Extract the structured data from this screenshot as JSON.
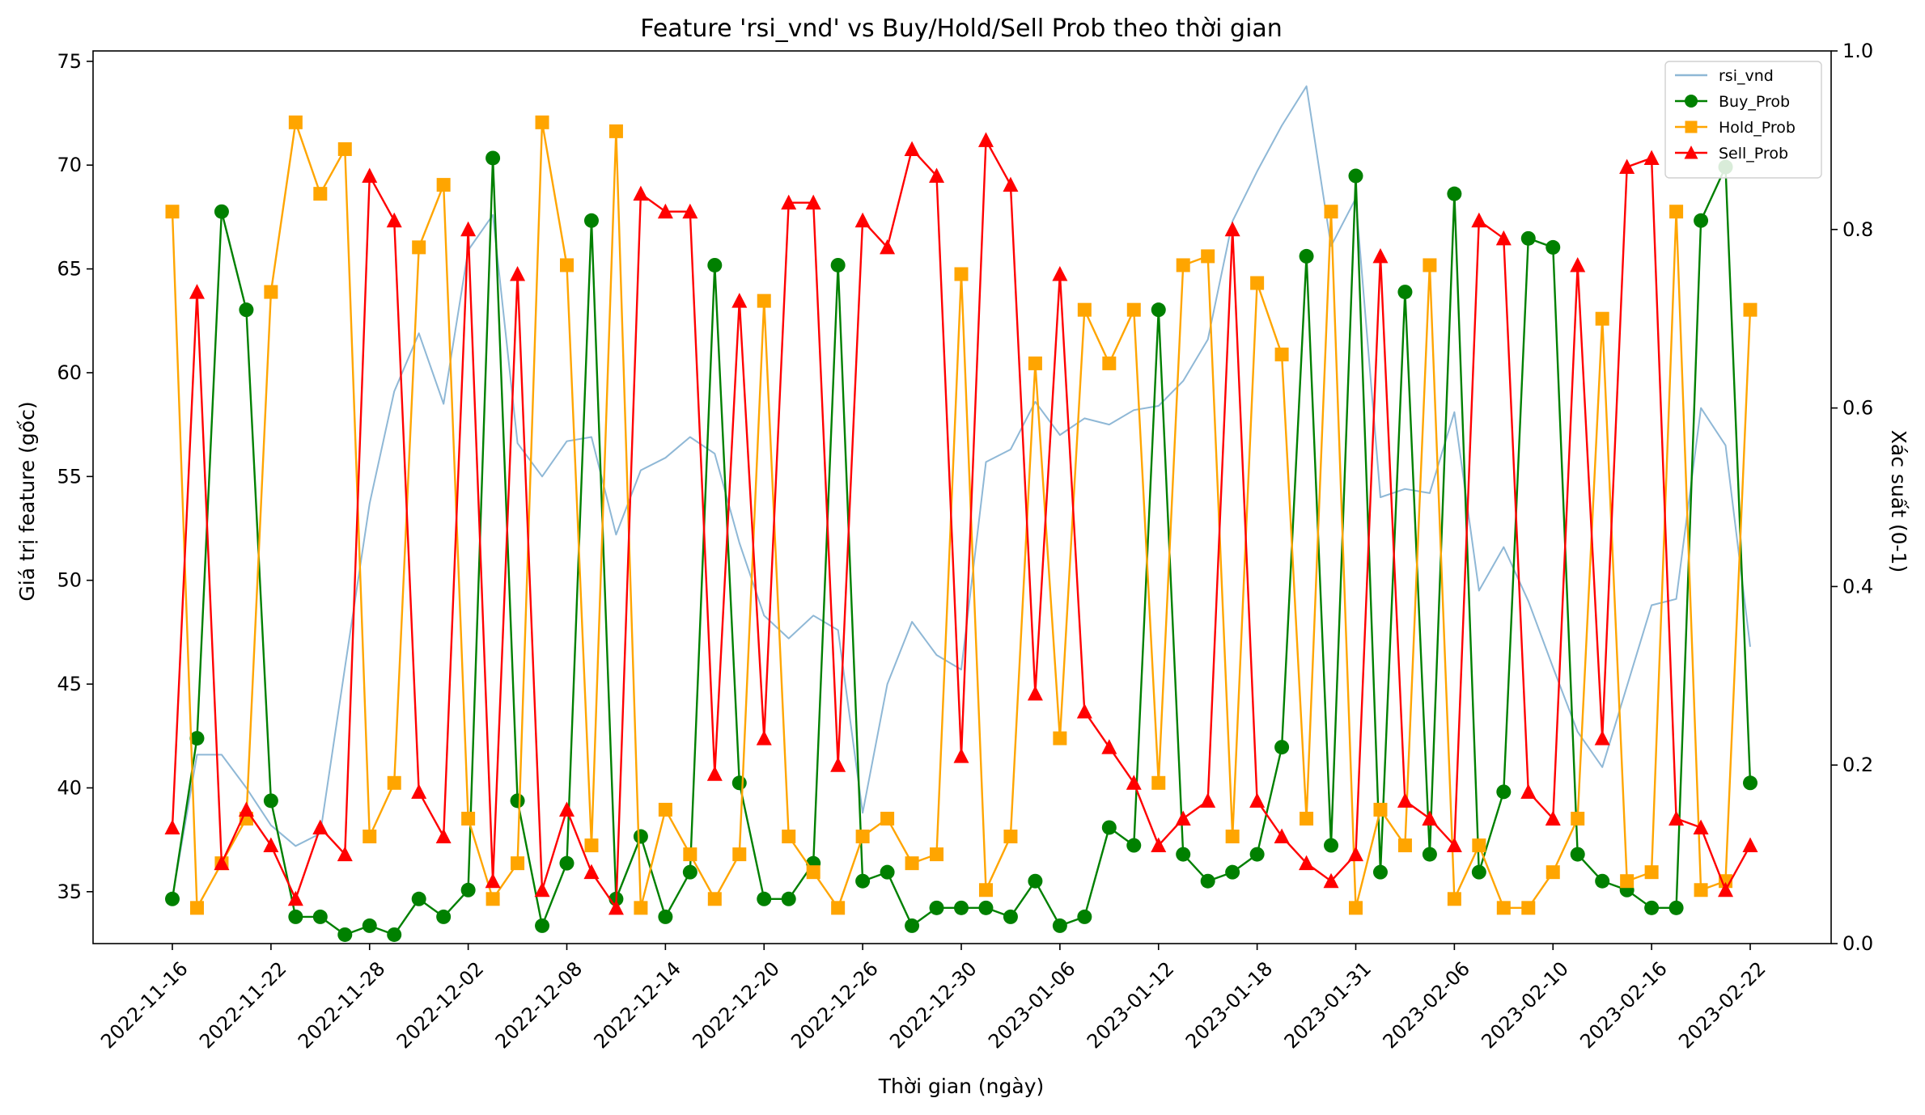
{
  "chart_data": {
    "type": "line",
    "title": "Feature 'rsi_vnd' vs Buy/Hold/Sell Prob theo thời gian",
    "xlabel": "Thời gian (ngày)",
    "ylabel_left": "Giá trị feature (gốc)",
    "ylabel_right": "Xác suất (0-1)",
    "ylim_left": [
      32.5,
      75.5
    ],
    "ylim_right": [
      0,
      1
    ],
    "yticks_left": [
      35,
      40,
      45,
      50,
      55,
      60,
      65,
      70,
      75
    ],
    "yticks_right": [
      "0.0",
      "0.2",
      "0.4",
      "0.6",
      "0.8",
      "1.0"
    ],
    "x_tick_labels": [
      "2022-11-16",
      "2022-11-22",
      "2022-11-28",
      "2022-12-02",
      "2022-12-08",
      "2022-12-14",
      "2022-12-20",
      "2022-12-26",
      "2022-12-30",
      "2023-01-06",
      "2023-01-12",
      "2023-01-18",
      "2023-01-31",
      "2023-02-06",
      "2023-02-10",
      "2023-02-16",
      "2023-02-22"
    ],
    "legend_position": "top-right",
    "grid": false,
    "series": [
      {
        "name": "rsi_vnd",
        "axis": "left",
        "color": "#8fb8d6",
        "marker": "none",
        "values": [
          34.7,
          41.6,
          41.6,
          40,
          38.2,
          37.2,
          37.8,
          45.8,
          53.7,
          59.1,
          61.9,
          58.5,
          65.9,
          67.6,
          56.6,
          55,
          56.7,
          56.9,
          52.2,
          55.3,
          55.9,
          56.9,
          56.1,
          51.8,
          48.3,
          47.2,
          48.3,
          47.6,
          38.8,
          45,
          48,
          46.4,
          45.7,
          55.7,
          56.3,
          58.6,
          57,
          57.8,
          57.5,
          58.2,
          58.4,
          59.6,
          61.6,
          67.3,
          69.7,
          71.9,
          73.8,
          66.1,
          68.4,
          54,
          54.4,
          54.2,
          58.1,
          49.5,
          51.6,
          49,
          45.8,
          42.7,
          41,
          44.9,
          48.8,
          49.1,
          58.3,
          56.5,
          46.8
        ]
      },
      {
        "name": "Buy_Prob",
        "axis": "right",
        "color": "#008000",
        "marker": "circle",
        "values": [
          0.05,
          0.23,
          0.82,
          0.71,
          0.16,
          0.03,
          0.03,
          0.01,
          0.02,
          0.01,
          0.05,
          0.03,
          0.06,
          0.88,
          0.16,
          0.02,
          0.09,
          0.81,
          0.05,
          0.12,
          0.03,
          0.08,
          0.76,
          0.18,
          0.05,
          0.05,
          0.09,
          0.76,
          0.07,
          0.08,
          0.02,
          0.04,
          0.04,
          0.04,
          0.03,
          0.07,
          0.02,
          0.03,
          0.13,
          0.11,
          0.71,
          0.1,
          0.07,
          0.08,
          0.1,
          0.22,
          0.77,
          0.11,
          0.86,
          0.08,
          0.73,
          0.1,
          0.84,
          0.08,
          0.17,
          0.79,
          0.78,
          0.1,
          0.07,
          0.06,
          0.04,
          0.04,
          0.81,
          0.87,
          0.18
        ]
      },
      {
        "name": "Hold_Prob",
        "axis": "right",
        "color": "#ffa500",
        "marker": "square",
        "values": [
          0.82,
          0.04,
          0.09,
          0.14,
          0.73,
          0.92,
          0.84,
          0.89,
          0.12,
          0.18,
          0.78,
          0.85,
          0.14,
          0.05,
          0.09,
          0.92,
          0.76,
          0.11,
          0.91,
          0.04,
          0.15,
          0.1,
          0.05,
          0.1,
          0.72,
          0.12,
          0.08,
          0.04,
          0.12,
          0.14,
          0.09,
          0.1,
          0.75,
          0.06,
          0.12,
          0.65,
          0.23,
          0.71,
          0.65,
          0.71,
          0.18,
          0.76,
          0.77,
          0.12,
          0.74,
          0.66,
          0.14,
          0.82,
          0.04,
          0.15,
          0.11,
          0.76,
          0.05,
          0.11,
          0.04,
          0.04,
          0.08,
          0.14,
          0.7,
          0.07,
          0.08,
          0.82,
          0.06,
          0.07,
          0.71
        ]
      },
      {
        "name": "Sell_Prob",
        "axis": "right",
        "color": "#ff0000",
        "marker": "triangle",
        "values": [
          0.13,
          0.73,
          0.09,
          0.15,
          0.11,
          0.05,
          0.13,
          0.1,
          0.86,
          0.81,
          0.17,
          0.12,
          0.8,
          0.07,
          0.75,
          0.06,
          0.15,
          0.08,
          0.04,
          0.84,
          0.82,
          0.82,
          0.19,
          0.72,
          0.23,
          0.83,
          0.83,
          0.2,
          0.81,
          0.78,
          0.89,
          0.86,
          0.21,
          0.9,
          0.85,
          0.28,
          0.75,
          0.26,
          0.22,
          0.18,
          0.11,
          0.14,
          0.16,
          0.8,
          0.16,
          0.12,
          0.09,
          0.07,
          0.1,
          0.77,
          0.16,
          0.14,
          0.11,
          0.81,
          0.79,
          0.17,
          0.14,
          0.76,
          0.23,
          0.87,
          0.88,
          0.14,
          0.13,
          0.06,
          0.11
        ]
      }
    ]
  }
}
